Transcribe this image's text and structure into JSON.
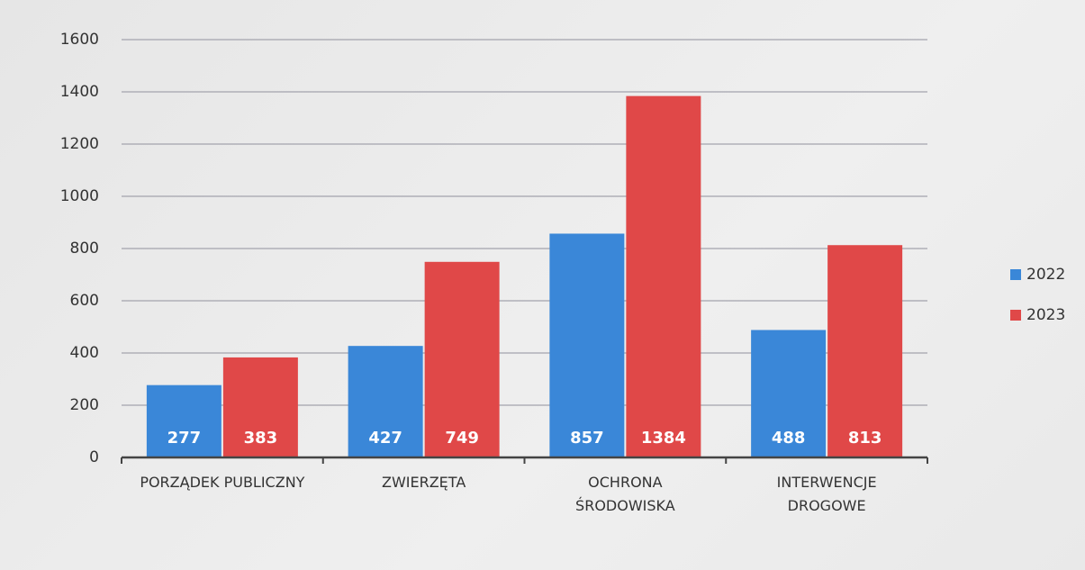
{
  "chart_data": {
    "type": "bar",
    "categories": [
      "PORZĄDEK PUBLICZNY",
      "ZWIERZĘTA",
      "OCHRONA\nŚRODOWISKA",
      "INTERWENCJE\nDROGOWE"
    ],
    "series": [
      {
        "name": "2022",
        "color": "#3a87d8",
        "values": [
          277,
          427,
          857,
          488
        ]
      },
      {
        "name": "2023",
        "color": "#e04848",
        "values": [
          383,
          749,
          1384,
          813
        ]
      }
    ],
    "ylim": [
      0,
      1600
    ],
    "yticks": [
      0,
      200,
      400,
      600,
      800,
      1000,
      1200,
      1400,
      1600
    ],
    "grid": true,
    "legend": "right"
  }
}
